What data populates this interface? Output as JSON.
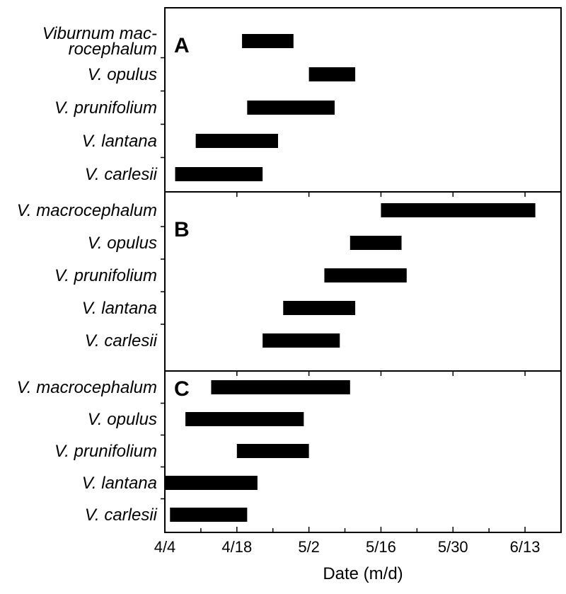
{
  "chart_data": {
    "type": "bar",
    "orientation": "horizontal",
    "bar_color": "#000000",
    "xlabel": "Date (m/d)",
    "x_tick_labels": [
      "4/4",
      "4/18",
      "5/2",
      "5/16",
      "5/30",
      "6/13"
    ],
    "xlim": [
      "4/4",
      "6/20"
    ],
    "panels": [
      {
        "letter": "A",
        "categories": [
          [
            "Viburnum mac-",
            "rocephalum"
          ],
          [
            "V. opulus"
          ],
          [
            "V. prunifolium"
          ],
          [
            "V. lantana"
          ],
          [
            "V. carlesii"
          ]
        ],
        "ranges": [
          [
            "4/19",
            "4/29"
          ],
          [
            "5/2",
            "5/11"
          ],
          [
            "4/20",
            "5/7"
          ],
          [
            "4/10",
            "4/26"
          ],
          [
            "4/6",
            "4/23"
          ]
        ]
      },
      {
        "letter": "B",
        "categories": [
          [
            "V. macrocephalum"
          ],
          [
            "V. opulus"
          ],
          [
            "V. prunifolium"
          ],
          [
            "V. lantana"
          ],
          [
            "V. carlesii"
          ]
        ],
        "ranges": [
          [
            "5/16",
            "6/15"
          ],
          [
            "5/10",
            "5/20"
          ],
          [
            "5/5",
            "5/21"
          ],
          [
            "4/27",
            "5/11"
          ],
          [
            "4/23",
            "5/8"
          ]
        ]
      },
      {
        "letter": "C",
        "categories": [
          [
            "V. macrocephalum"
          ],
          [
            "V. opulus"
          ],
          [
            "V. prunifolium"
          ],
          [
            "V. lantana"
          ],
          [
            "V. carlesii"
          ]
        ],
        "ranges": [
          [
            "4/13",
            "5/10"
          ],
          [
            "4/8",
            "5/1"
          ],
          [
            "4/18",
            "5/2"
          ],
          [
            "4/4",
            "4/22"
          ],
          [
            "4/5",
            "4/20"
          ]
        ]
      }
    ]
  }
}
